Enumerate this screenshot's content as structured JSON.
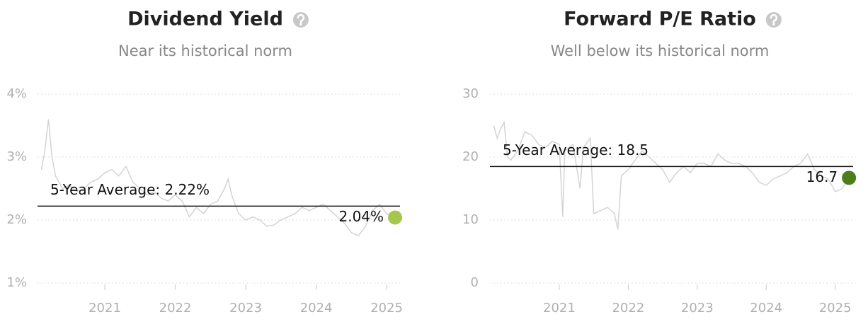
{
  "chart_data": [
    {
      "type": "line",
      "title": "Dividend Yield",
      "subtitle": "Near its historical norm",
      "x": [
        2020.1,
        2020.15,
        2020.2,
        2020.25,
        2020.3,
        2020.4,
        2020.5,
        2020.6,
        2020.7,
        2020.8,
        2020.9,
        2021.0,
        2021.1,
        2021.2,
        2021.3,
        2021.4,
        2021.5,
        2021.6,
        2021.7,
        2021.8,
        2021.9,
        2022.0,
        2022.1,
        2022.2,
        2022.3,
        2022.4,
        2022.5,
        2022.6,
        2022.7,
        2022.75,
        2022.8,
        2022.9,
        2023.0,
        2023.1,
        2023.2,
        2023.3,
        2023.4,
        2023.5,
        2023.6,
        2023.7,
        2023.8,
        2023.9,
        2024.0,
        2024.1,
        2024.2,
        2024.3,
        2024.4,
        2024.5,
        2024.6,
        2024.7,
        2024.8,
        2024.9,
        2025.0,
        2025.1,
        2025.12
      ],
      "series": [
        {
          "color": "#d4d4d4",
          "values": [
            2.8,
            3.1,
            3.6,
            3.0,
            2.7,
            2.5,
            2.55,
            2.45,
            2.5,
            2.6,
            2.65,
            2.75,
            2.8,
            2.7,
            2.85,
            2.6,
            2.5,
            2.4,
            2.45,
            2.35,
            2.3,
            2.4,
            2.3,
            2.05,
            2.2,
            2.1,
            2.25,
            2.3,
            2.5,
            2.65,
            2.4,
            2.1,
            2.0,
            2.05,
            2.0,
            1.9,
            1.92,
            2.0,
            2.05,
            2.1,
            2.2,
            2.15,
            2.2,
            2.25,
            2.15,
            2.05,
            1.95,
            1.8,
            1.75,
            1.9,
            2.15,
            2.25,
            2.1,
            2.05,
            2.04
          ]
        }
      ],
      "average": {
        "value": 2.22,
        "label": "5-Year Average: 2.22%"
      },
      "current": {
        "value": 2.04,
        "label": "2.04%",
        "color": "#a5c84c"
      },
      "xlim": [
        2020,
        2025.25
      ],
      "xticks": [
        2021,
        2022,
        2023,
        2024,
        2025
      ],
      "ylim": [
        1,
        4
      ],
      "yticks": [
        {
          "value": 1,
          "label": "1%"
        },
        {
          "value": 2,
          "label": "2%"
        },
        {
          "value": 3,
          "label": "3%"
        },
        {
          "value": 4,
          "label": "4%"
        }
      ],
      "grid": true
    },
    {
      "type": "line",
      "title": "Forward P/E Ratio",
      "subtitle": "Well below its historical norm",
      "x": [
        2020.05,
        2020.1,
        2020.15,
        2020.2,
        2020.25,
        2020.3,
        2020.4,
        2020.5,
        2020.6,
        2020.7,
        2020.8,
        2020.9,
        2021.0,
        2021.05,
        2021.08,
        2021.2,
        2021.3,
        2021.35,
        2021.45,
        2021.5,
        2021.6,
        2021.7,
        2021.8,
        2021.85,
        2021.9,
        2022.0,
        2022.1,
        2022.2,
        2022.3,
        2022.4,
        2022.5,
        2022.6,
        2022.7,
        2022.8,
        2022.9,
        2023.0,
        2023.1,
        2023.2,
        2023.3,
        2023.4,
        2023.5,
        2023.6,
        2023.7,
        2023.8,
        2023.9,
        2024.0,
        2024.1,
        2024.2,
        2024.3,
        2024.4,
        2024.5,
        2024.6,
        2024.7,
        2024.8,
        2024.9,
        2025.0,
        2025.1,
        2025.2
      ],
      "series": [
        {
          "color": "#d4d4d4",
          "values": [
            25,
            23,
            24.5,
            25.5,
            20,
            19.5,
            21,
            24,
            23.5,
            22,
            21.5,
            22.5,
            22,
            10.5,
            21,
            22,
            15,
            21.5,
            23,
            11,
            11.5,
            12,
            11,
            8.5,
            17,
            18,
            19.5,
            21,
            20,
            19,
            18,
            16,
            17.5,
            18.5,
            17.5,
            19,
            19,
            18.5,
            20.5,
            19.5,
            19,
            19,
            18.5,
            17.5,
            16,
            15.5,
            16.5,
            17,
            17.5,
            18.5,
            19,
            20.5,
            18,
            17,
            16.5,
            14.5,
            15,
            16.7
          ]
        }
      ],
      "average": {
        "value": 18.5,
        "label": "5-Year Average: 18.5"
      },
      "current": {
        "value": 16.7,
        "label": "16.7",
        "color": "#4e7d1b"
      },
      "xlim": [
        2020,
        2025.25
      ],
      "xticks": [
        2021,
        2022,
        2023,
        2024,
        2025
      ],
      "ylim": [
        0,
        30
      ],
      "yticks": [
        0,
        10,
        20,
        30
      ],
      "grid": true
    }
  ]
}
